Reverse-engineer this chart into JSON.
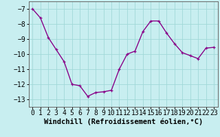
{
  "x": [
    0,
    1,
    2,
    3,
    4,
    5,
    6,
    7,
    8,
    9,
    10,
    11,
    12,
    13,
    14,
    15,
    16,
    17,
    18,
    19,
    20,
    21,
    22,
    23
  ],
  "y": [
    -7.0,
    -7.6,
    -8.9,
    -9.7,
    -10.5,
    -12.0,
    -12.1,
    -12.8,
    -12.55,
    -12.5,
    -12.4,
    -11.0,
    -10.0,
    -9.8,
    -8.5,
    -7.8,
    -7.8,
    -8.6,
    -9.3,
    -9.9,
    -10.1,
    -10.3,
    -9.6,
    -9.55
  ],
  "line_color": "#880088",
  "marker": "+",
  "marker_size": 3.5,
  "linewidth": 1.0,
  "bg_color": "#c8eef0",
  "grid_color": "#a0d8d8",
  "xlabel": "Windchill (Refroidissement éolien,°C)",
  "ylim": [
    -13.5,
    -6.5
  ],
  "yticks": [
    -13,
    -12,
    -11,
    -10,
    -9,
    -8,
    -7
  ],
  "xlim": [
    -0.5,
    23.5
  ],
  "xticks": [
    0,
    1,
    2,
    3,
    4,
    5,
    6,
    7,
    8,
    9,
    10,
    11,
    12,
    13,
    14,
    15,
    16,
    17,
    18,
    19,
    20,
    21,
    22,
    23
  ],
  "xlabel_fontsize": 7.5,
  "tick_fontsize": 7
}
